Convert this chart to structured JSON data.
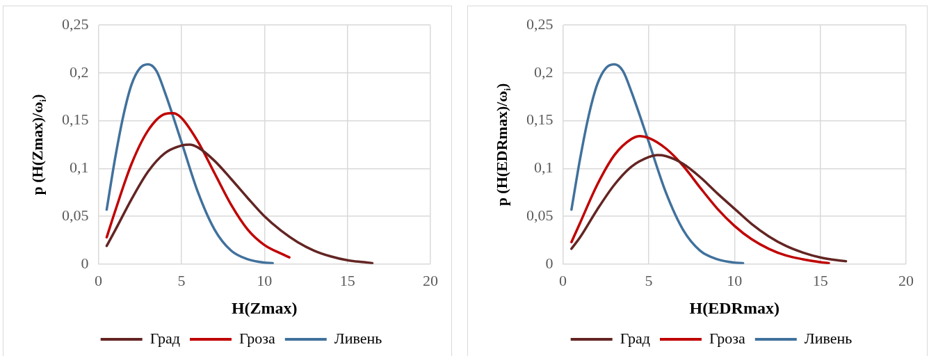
{
  "chart_data": [
    {
      "type": "line",
      "xlabel": "H(Zmax)",
      "ylabel": "p (H(Zmax)/ω$_{i}$)",
      "xlim": [
        0,
        20
      ],
      "xticks": [
        0,
        5,
        10,
        15,
        20
      ],
      "ylim": [
        0,
        0.25
      ],
      "yticks": [
        {
          "value": 0,
          "label": "0"
        },
        {
          "value": 0.05,
          "label": "0,05"
        },
        {
          "value": 0.1,
          "label": "0,1"
        },
        {
          "value": 0.15,
          "label": "0,15"
        },
        {
          "value": 0.2,
          "label": "0,2"
        },
        {
          "value": 0.25,
          "label": "0,25"
        }
      ],
      "grid": true,
      "legend": "bottom",
      "marker": "none",
      "series": [
        {
          "name": "Град",
          "color": "#632523",
          "x": [
            0.5,
            1,
            2,
            3,
            4,
            5,
            5.5,
            6,
            7,
            8,
            9,
            10,
            11,
            12,
            13,
            14,
            15,
            16,
            16.5
          ],
          "values": [
            0.019,
            0.035,
            0.068,
            0.097,
            0.116,
            0.124,
            0.125,
            0.122,
            0.108,
            0.089,
            0.069,
            0.05,
            0.035,
            0.023,
            0.014,
            0.008,
            0.004,
            0.002,
            0.001
          ]
        },
        {
          "name": "Гроза",
          "color": "#c00000",
          "x": [
            0.5,
            1,
            2,
            3,
            4,
            4.5,
            5,
            6,
            7,
            8,
            9,
            10,
            11,
            11.5
          ],
          "values": [
            0.028,
            0.055,
            0.105,
            0.14,
            0.157,
            0.158,
            0.153,
            0.128,
            0.095,
            0.062,
            0.036,
            0.02,
            0.011,
            0.007
          ]
        },
        {
          "name": "Ливень",
          "color": "#41719c",
          "x": [
            0.5,
            1,
            1.5,
            2,
            2.5,
            3,
            3.5,
            4,
            5,
            6,
            7,
            8,
            9,
            10,
            10.5
          ],
          "values": [
            0.057,
            0.11,
            0.155,
            0.188,
            0.205,
            0.209,
            0.202,
            0.18,
            0.128,
            0.075,
            0.036,
            0.014,
            0.005,
            0.0015,
            0.001
          ]
        }
      ]
    },
    {
      "type": "line",
      "xlabel": "H(EDRmax)",
      "ylabel": "p (H(EDRmax)/ω$_{i}$)",
      "xlim": [
        0,
        20
      ],
      "xticks": [
        0,
        5,
        10,
        15,
        20
      ],
      "ylim": [
        0,
        0.25
      ],
      "yticks": [
        {
          "value": 0,
          "label": "0"
        },
        {
          "value": 0.05,
          "label": "0,05"
        },
        {
          "value": 0.1,
          "label": "0,1"
        },
        {
          "value": 0.15,
          "label": "0,15"
        },
        {
          "value": 0.2,
          "label": "0,2"
        },
        {
          "value": 0.25,
          "label": "0,25"
        }
      ],
      "grid": true,
      "legend": "bottom",
      "marker": "none",
      "series": [
        {
          "name": "Град",
          "color": "#632523",
          "x": [
            0.5,
            1,
            2,
            3,
            4,
            5,
            5.5,
            6,
            7,
            8,
            9,
            10,
            11,
            12,
            13,
            14,
            15,
            16,
            16.5
          ],
          "values": [
            0.016,
            0.028,
            0.057,
            0.083,
            0.102,
            0.112,
            0.114,
            0.113,
            0.105,
            0.091,
            0.074,
            0.058,
            0.042,
            0.029,
            0.019,
            0.012,
            0.007,
            0.004,
            0.003
          ]
        },
        {
          "name": "Гроза",
          "color": "#c00000",
          "x": [
            0.5,
            1,
            2,
            3,
            4,
            4.5,
            5,
            6,
            7,
            8,
            9,
            10,
            11,
            12,
            13,
            14,
            15,
            15.5
          ],
          "values": [
            0.023,
            0.043,
            0.083,
            0.114,
            0.131,
            0.134,
            0.132,
            0.121,
            0.103,
            0.08,
            0.058,
            0.04,
            0.026,
            0.016,
            0.009,
            0.005,
            0.002,
            0.001
          ]
        },
        {
          "name": "Ливень",
          "color": "#41719c",
          "x": [
            0.5,
            1,
            1.5,
            2,
            2.5,
            3,
            3.5,
            4,
            5,
            6,
            7,
            8,
            9,
            10,
            10.5
          ],
          "values": [
            0.057,
            0.11,
            0.155,
            0.188,
            0.205,
            0.209,
            0.202,
            0.18,
            0.128,
            0.075,
            0.036,
            0.014,
            0.005,
            0.0015,
            0.001
          ]
        }
      ]
    }
  ]
}
